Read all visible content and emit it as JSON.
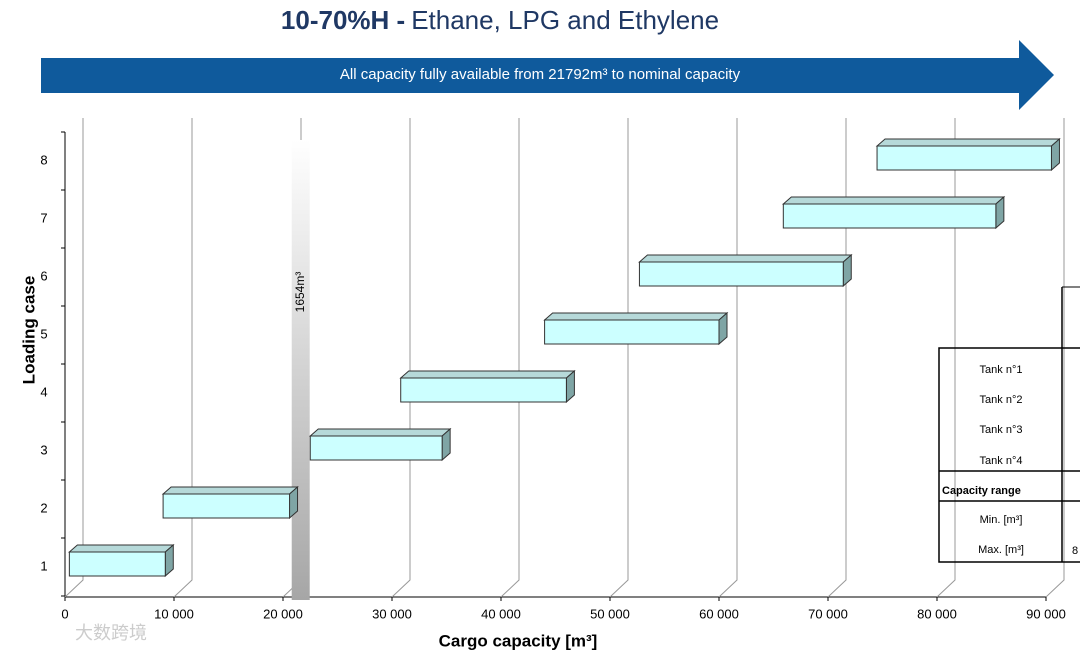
{
  "chart_data": {
    "type": "range-bar",
    "title_bold": "10-70%H -",
    "title": "Ethane, LPG and Ethylene",
    "x_label": "Cargo capacity [m³]",
    "y_label": "Loading case",
    "categories": [
      "1",
      "2",
      "3",
      "4",
      "5",
      "6",
      "7",
      "8"
    ],
    "series": [
      {
        "color": "#ccffff",
        "start": [
          400,
          9000,
          22500,
          30800,
          44000,
          52700,
          65900,
          74500
        ],
        "end": [
          9200,
          20600,
          34600,
          46000,
          60000,
          71400,
          85400,
          90500
        ]
      }
    ],
    "band": {
      "label": "1654m³",
      "start": 20800,
      "end": 22450
    },
    "xlim": [
      0,
      90000
    ],
    "xticks": [
      0,
      {
        "value": 10000,
        "label": "10 000"
      },
      {
        "value": 20000,
        "label": "20 000"
      },
      {
        "value": 30000,
        "label": "30 000"
      },
      {
        "value": 40000,
        "label": "40 000"
      },
      {
        "value": 50000,
        "label": "50 000"
      },
      {
        "value": 60000,
        "label": "60 000"
      },
      {
        "value": 70000,
        "label": "70 000"
      },
      {
        "value": 80000,
        "label": "80 000"
      },
      {
        "value": 90000,
        "label": "90 000"
      }
    ],
    "grid": true
  },
  "banner": "All capacity fully available from 21792m³ to nominal capacity",
  "table": {
    "tanks": [
      "Tank n°1",
      "Tank n°2",
      "Tank n°3",
      "Tank n°4"
    ],
    "section": "Capacity range",
    "min": "Min. [m³]",
    "max": "Max. [m³]",
    "max_value": "8"
  },
  "watermark": "大数跨境"
}
